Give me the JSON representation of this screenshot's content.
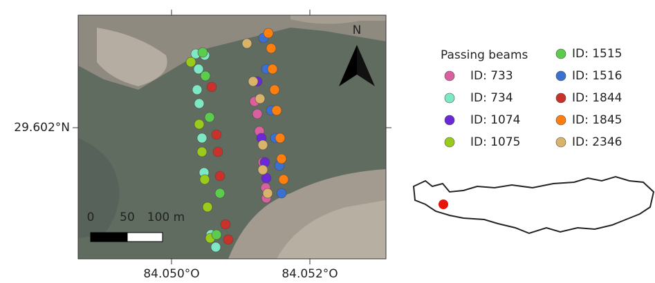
{
  "chart_data": {
    "type": "scatter",
    "xlim": [
      84.04865,
      84.0531
    ],
    "ylim": [
      29.60029,
      29.603467
    ],
    "xticks": [
      {
        "value": 84.05,
        "label": "84.050°O"
      },
      {
        "value": 84.052,
        "label": "84.052°O"
      }
    ],
    "yticks": [
      {
        "value": 29.602,
        "label": "29.602°N"
      }
    ],
    "legend_title": "Passing beams",
    "north_label": "N",
    "scale_bar_labels": [
      "0",
      "50",
      "100 m"
    ],
    "series": [
      {
        "name": "ID: 733",
        "color": "#d9609e",
        "x": [
          84.0512,
          84.05124,
          84.05127,
          84.05132,
          84.05136,
          84.05137
        ],
        "y": [
          29.602342,
          29.60218,
          29.601955,
          29.60155,
          29.601217,
          29.601082
        ]
      },
      {
        "name": "ID: 734",
        "color": "#7ee8c4",
        "x": [
          84.05035,
          84.05048,
          84.05039,
          84.05037,
          84.0504,
          84.05044,
          84.05047,
          84.05052,
          84.05057,
          84.05064
        ],
        "y": [
          29.602963,
          29.602945,
          29.602765,
          29.602495,
          29.602315,
          29.601865,
          29.601415,
          29.600965,
          29.600605,
          29.600443
        ]
      },
      {
        "name": "ID: 1074",
        "color": "#6a28d8",
        "x": [
          84.05124,
          84.0513,
          84.05135,
          84.05137
        ],
        "y": [
          29.602603,
          29.601865,
          29.60155,
          29.601343
        ]
      },
      {
        "name": "ID: 1075",
        "color": "#99cc1a",
        "x": [
          84.05028,
          84.0504,
          84.05044,
          84.05048,
          84.05052,
          84.05056
        ],
        "y": [
          29.602855,
          29.602045,
          29.601685,
          29.601325,
          29.600965,
          29.60056
        ]
      },
      {
        "name": "ID: 1515",
        "color": "#5ccc4c",
        "x": [
          84.05045,
          84.05049,
          84.05055,
          84.0507,
          84.05065
        ],
        "y": [
          29.602981,
          29.602675,
          29.602135,
          29.601145,
          29.600605
        ]
      },
      {
        "name": "ID: 1516",
        "color": "#3b6fd0",
        "x": [
          84.05133,
          84.05137,
          84.05144,
          84.0515,
          84.05156,
          84.05159
        ],
        "y": [
          29.60317,
          29.602765,
          29.602225,
          29.601865,
          29.601505,
          29.601145
        ]
      },
      {
        "name": "ID: 1844",
        "color": "#c8322a",
        "x": [
          84.05058,
          84.05065,
          84.05067,
          84.0507,
          84.05078,
          84.05082
        ],
        "y": [
          29.602531,
          29.60191,
          29.601685,
          29.60137,
          29.60074,
          29.600542
        ]
      },
      {
        "name": "ID: 1845",
        "color": "#ff7f0e",
        "x": [
          84.0514,
          84.05144,
          84.05146,
          84.05149,
          84.05152,
          84.05157,
          84.05159,
          84.05162
        ],
        "y": [
          29.603233,
          29.603035,
          29.602765,
          29.602495,
          29.602225,
          29.601865,
          29.601595,
          29.601325
        ]
      },
      {
        "name": "ID: 2346",
        "color": "#d9b36a",
        "x": [
          84.05109,
          84.05118,
          84.05128,
          84.05132,
          84.05132,
          84.05139
        ],
        "y": [
          29.603098,
          29.602603,
          29.602378,
          29.601775,
          29.601451,
          29.601145
        ]
      }
    ]
  }
}
